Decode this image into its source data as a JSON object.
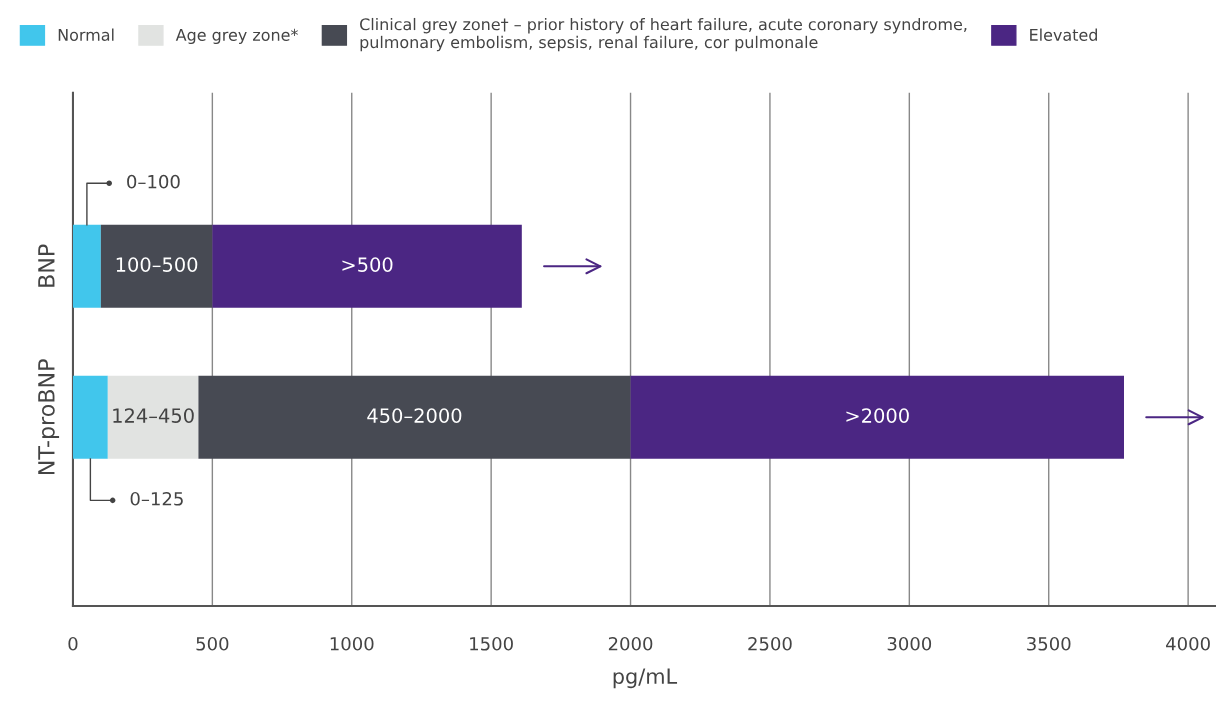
{
  "chart_data": {
    "type": "bar",
    "orientation": "horizontal",
    "stacked": true,
    "categories": [
      "BNP",
      "NT-proBNP"
    ],
    "series": [
      {
        "name": "Normal",
        "color": "#41c6ec",
        "values": [
          100,
          125
        ],
        "value_labels": [
          "0–100",
          "0–125"
        ]
      },
      {
        "name": "Age grey zone*",
        "color": "#e1e3e1",
        "values": [
          null,
          325
        ],
        "value_labels": [
          null,
          "124–450"
        ]
      },
      {
        "name": "Clinical grey zone† – prior history of heart failure, acute coronary syndrome,\npulmonary embolism, sepsis, renal failure, cor pulmonale",
        "color": "#474a53",
        "values": [
          400,
          1550
        ],
        "value_labels": [
          "100–500",
          "450–2000"
        ]
      },
      {
        "name": "Elevated",
        "color": "#4b2683",
        "values": [
          1110,
          1770
        ],
        "value_labels": [
          ">500",
          ">2000"
        ]
      }
    ],
    "xlabel": "pg/mL",
    "xlim": [
      0,
      4100
    ],
    "xticks": [
      0,
      500,
      1000,
      1500,
      2000,
      2500,
      3000,
      3500,
      4000
    ],
    "grid": "x",
    "legend": "top"
  }
}
